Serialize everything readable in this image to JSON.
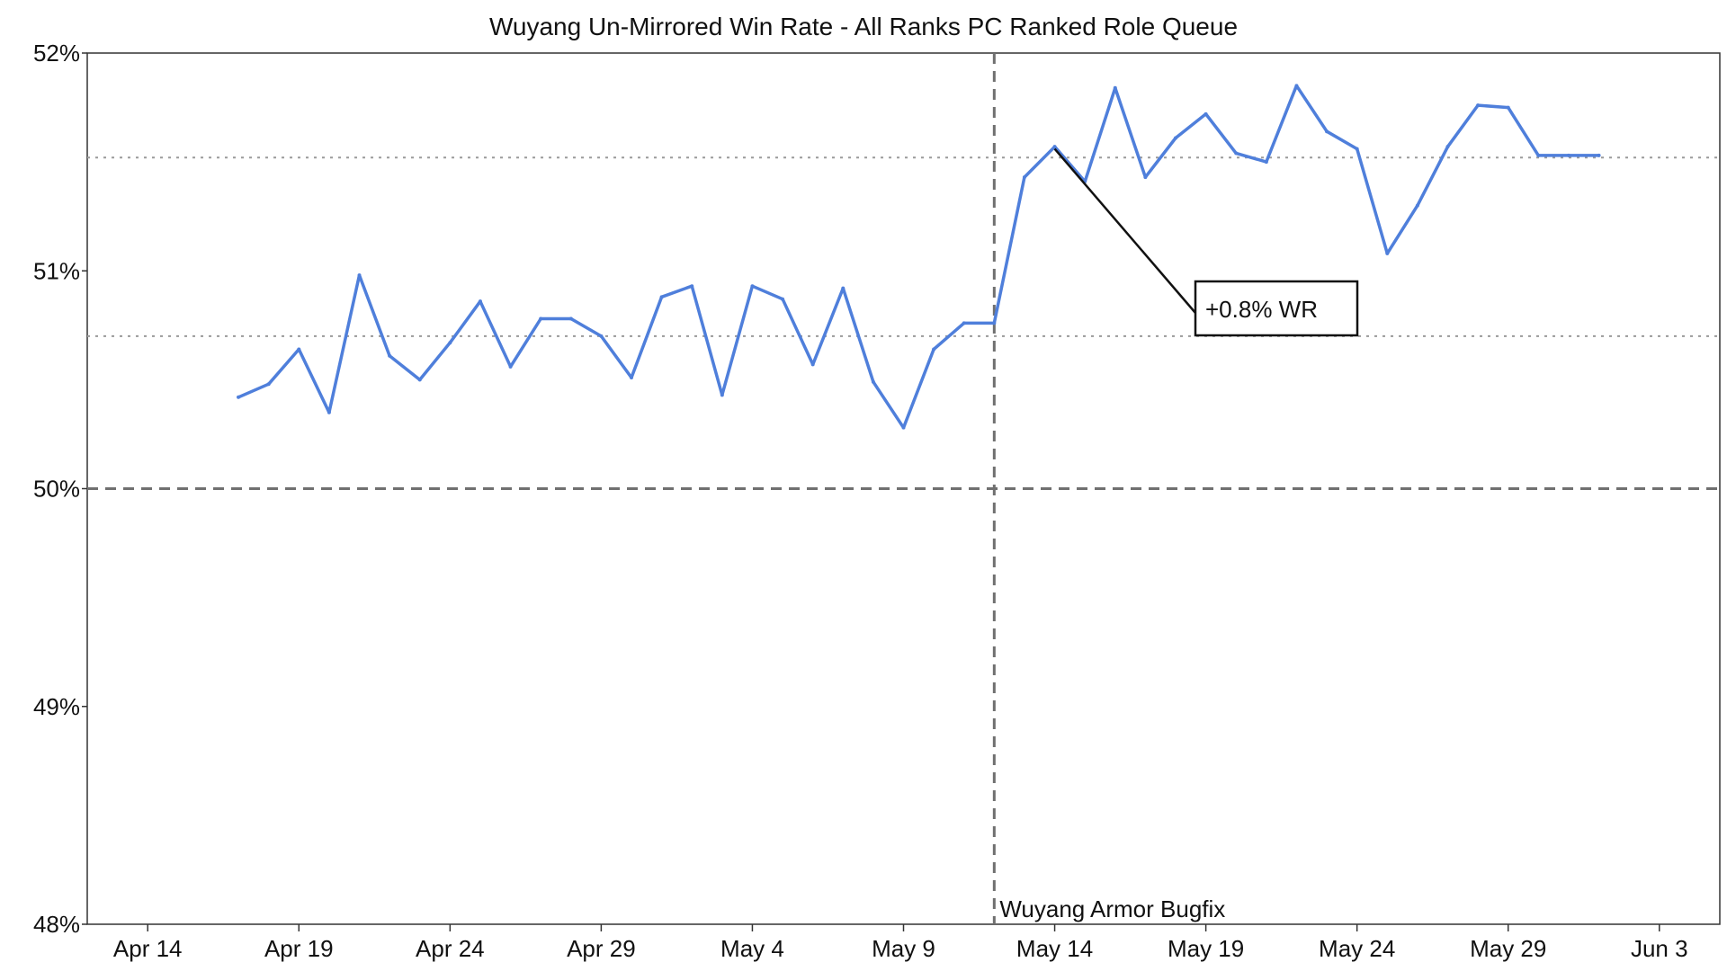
{
  "chart_data": {
    "type": "line",
    "title": "Wuyang Un-Mirrored Win Rate - All Ranks PC Ranked Role Queue",
    "xlabel": "",
    "ylabel": "",
    "x_axis": {
      "range": [
        "2023-04-11",
        "2023-06-04"
      ],
      "ticks": [
        {
          "date": "2023-04-13",
          "label": "Apr 14"
        },
        {
          "date": "2023-04-18",
          "label": "Apr 19"
        },
        {
          "date": "2023-04-23",
          "label": "Apr 24"
        },
        {
          "date": "2023-04-28",
          "label": "Apr 29"
        },
        {
          "date": "2023-05-03",
          "label": "May 4"
        },
        {
          "date": "2023-05-08",
          "label": "May 9"
        },
        {
          "date": "2023-05-13",
          "label": "May 14"
        },
        {
          "date": "2023-05-18",
          "label": "May 19"
        },
        {
          "date": "2023-05-23",
          "label": "May 24"
        },
        {
          "date": "2023-05-28",
          "label": "May 29"
        },
        {
          "date": "2023-06-02",
          "label": "Jun 3"
        }
      ]
    },
    "y_axis": {
      "range": [
        48,
        52
      ],
      "ticks": [
        52,
        51,
        50,
        49,
        48
      ],
      "tick_labels": [
        "52%",
        "51%",
        "50%",
        "49%",
        "48%"
      ]
    },
    "grid": false,
    "series": [
      {
        "color": "#4f7fdb",
        "x": [
          "2023-04-16",
          "2023-04-17",
          "2023-04-18",
          "2023-04-19",
          "2023-04-20",
          "2023-04-21",
          "2023-04-22",
          "2023-04-23",
          "2023-04-24",
          "2023-04-25",
          "2023-04-26",
          "2023-04-27",
          "2023-04-28",
          "2023-04-29",
          "2023-04-30",
          "2023-05-01",
          "2023-05-02",
          "2023-05-03",
          "2023-05-04",
          "2023-05-05",
          "2023-05-06",
          "2023-05-07",
          "2023-05-08",
          "2023-05-09",
          "2023-05-10",
          "2023-05-11",
          "2023-05-12",
          "2023-05-13",
          "2023-05-14",
          "2023-05-15",
          "2023-05-16",
          "2023-05-17",
          "2023-05-18",
          "2023-05-19",
          "2023-05-20",
          "2023-05-21",
          "2023-05-22",
          "2023-05-23",
          "2023-05-24",
          "2023-05-25",
          "2023-05-26",
          "2023-05-27",
          "2023-05-28",
          "2023-05-29",
          "2023-05-30",
          "2023-05-31"
        ],
        "values": [
          50.42,
          50.48,
          50.64,
          50.35,
          50.98,
          50.61,
          50.5,
          50.67,
          50.86,
          50.56,
          50.78,
          50.78,
          50.7,
          50.51,
          50.88,
          50.93,
          50.43,
          50.93,
          50.87,
          50.57,
          50.92,
          50.49,
          50.28,
          50.64,
          50.76,
          50.76,
          51.43,
          51.57,
          51.41,
          51.84,
          51.43,
          51.61,
          51.72,
          51.54,
          51.5,
          51.85,
          51.64,
          51.56,
          51.08,
          51.3,
          51.57,
          51.76,
          51.75,
          51.53,
          51.53,
          51.53
        ]
      }
    ],
    "reference_lines": [
      {
        "axis": "y",
        "value": 50.0,
        "style": "dashed",
        "color": "#707070"
      },
      {
        "axis": "y",
        "value": 51.52,
        "style": "dotted",
        "color": "#9a9a9a"
      },
      {
        "axis": "y",
        "value": 50.7,
        "style": "dotted",
        "color": "#9a9a9a"
      },
      {
        "axis": "x",
        "value": "2023-05-11",
        "style": "dashed",
        "color": "#707070",
        "label": "Wuyang Armor Bugfix"
      }
    ],
    "annotations": [
      {
        "text": "+0.8% WR",
        "x": "2023-05-13",
        "y": 51.56
      }
    ]
  }
}
